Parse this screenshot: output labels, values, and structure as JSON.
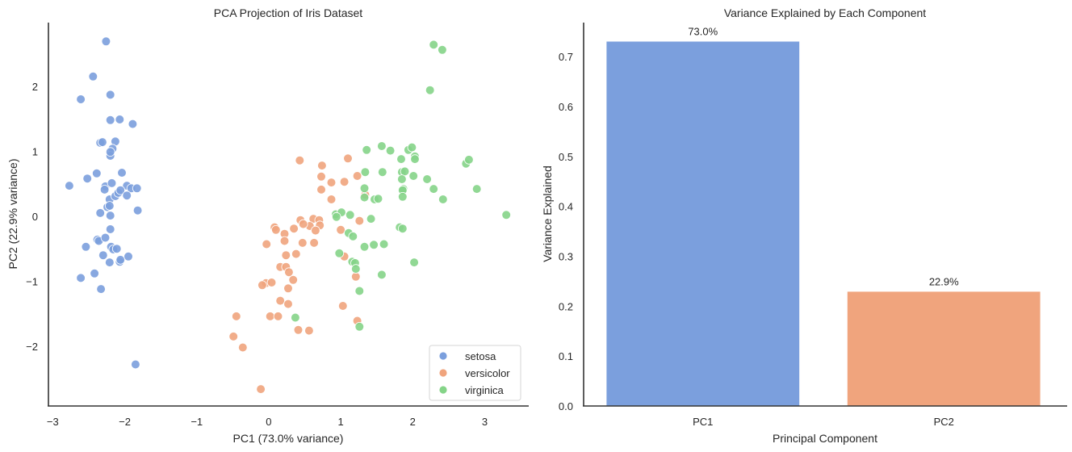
{
  "chart_data": [
    {
      "type": "scatter",
      "title": "PCA Projection of Iris Dataset",
      "xlabel": "PC1 (73.0% variance)",
      "ylabel": "PC2 (22.9% variance)",
      "xlim": [
        -3.06,
        3.6
      ],
      "ylim": [
        -2.92,
        2.98
      ],
      "xticks": [
        -3,
        -2,
        -1,
        0,
        1,
        2,
        3
      ],
      "xtick_labels": [
        "−3",
        "−2",
        "−1",
        "0",
        "1",
        "2",
        "3"
      ],
      "yticks": [
        -2,
        -1,
        0,
        1,
        2
      ],
      "ytick_labels": [
        "−2",
        "−1",
        "0",
        "1",
        "2"
      ],
      "grid": false,
      "legend": {
        "placement": "lower-right"
      },
      "series": [
        {
          "name": "setosa",
          "color": "#7b9fdd",
          "points": [
            [
              -2.26,
              2.69
            ],
            [
              -2.44,
              2.15
            ],
            [
              -2.61,
              1.8
            ],
            [
              -2.2,
              1.87
            ],
            [
              -2.2,
              1.48
            ],
            [
              -2.07,
              1.49
            ],
            [
              -1.89,
              1.42
            ],
            [
              -2.34,
              1.13
            ],
            [
              -2.31,
              1.14
            ],
            [
              -2.13,
              1.15
            ],
            [
              -2.17,
              1.04
            ],
            [
              -2.2,
              0.93
            ],
            [
              -2.2,
              0.99
            ],
            [
              -2.77,
              0.47
            ],
            [
              -2.52,
              0.58
            ],
            [
              -2.39,
              0.66
            ],
            [
              -2.04,
              0.67
            ],
            [
              -2.27,
              0.46
            ],
            [
              -2.28,
              0.41
            ],
            [
              -2.18,
              0.51
            ],
            [
              -1.97,
              0.47
            ],
            [
              -1.91,
              0.43
            ],
            [
              -1.83,
              0.43
            ],
            [
              -2.21,
              0.26
            ],
            [
              -2.13,
              0.31
            ],
            [
              -2.09,
              0.36
            ],
            [
              -2.06,
              0.4
            ],
            [
              -1.97,
              0.32
            ],
            [
              -2.34,
              0.05
            ],
            [
              -2.24,
              0.14
            ],
            [
              -2.21,
              0.16
            ],
            [
              -1.82,
              0.09
            ],
            [
              -2.2,
              0.01
            ],
            [
              -2.2,
              -0.2
            ],
            [
              -2.38,
              -0.36
            ],
            [
              -2.36,
              -0.38
            ],
            [
              -2.27,
              -0.33
            ],
            [
              -2.19,
              -0.47
            ],
            [
              -2.16,
              -0.51
            ],
            [
              -2.11,
              -0.5
            ],
            [
              -2.54,
              -0.47
            ],
            [
              -2.3,
              -0.6
            ],
            [
              -2.21,
              -0.71
            ],
            [
              -2.07,
              -0.7
            ],
            [
              -2.06,
              -0.67
            ],
            [
              -1.95,
              -0.62
            ],
            [
              -2.61,
              -0.95
            ],
            [
              -2.42,
              -0.88
            ],
            [
              -2.33,
              -1.12
            ],
            [
              -1.85,
              -2.28
            ]
          ]
        },
        {
          "name": "versicolor",
          "color": "#f0a47d",
          "points": [
            [
              0.43,
              0.86
            ],
            [
              0.74,
              0.78
            ],
            [
              1.1,
              0.89
            ],
            [
              0.73,
              0.61
            ],
            [
              0.87,
              0.52
            ],
            [
              1.05,
              0.53
            ],
            [
              1.23,
              0.62
            ],
            [
              0.73,
              0.41
            ],
            [
              0.87,
              0.26
            ],
            [
              1.34,
              0.33
            ],
            [
              0.62,
              -0.04
            ],
            [
              0.44,
              -0.06
            ],
            [
              0.7,
              -0.06
            ],
            [
              0.57,
              -0.15
            ],
            [
              0.71,
              -0.14
            ],
            [
              0.08,
              -0.17
            ],
            [
              0.1,
              -0.21
            ],
            [
              0.22,
              -0.27
            ],
            [
              0.35,
              -0.19
            ],
            [
              0.48,
              -0.12
            ],
            [
              0.65,
              -0.22
            ],
            [
              0.22,
              -0.38
            ],
            [
              -0.03,
              -0.43
            ],
            [
              0.47,
              -0.41
            ],
            [
              0.63,
              -0.41
            ],
            [
              1.0,
              -0.21
            ],
            [
              1.26,
              -0.07
            ],
            [
              0.24,
              -0.6
            ],
            [
              0.38,
              -0.58
            ],
            [
              0.16,
              -0.78
            ],
            [
              0.24,
              -0.78
            ],
            [
              0.28,
              -0.86
            ],
            [
              0.34,
              -0.98
            ],
            [
              1.05,
              -0.62
            ],
            [
              1.21,
              -0.93
            ],
            [
              -0.04,
              -1.03
            ],
            [
              -0.09,
              -1.06
            ],
            [
              0.04,
              -1.02
            ],
            [
              0.27,
              -1.11
            ],
            [
              0.16,
              -1.3
            ],
            [
              0.27,
              -1.35
            ],
            [
              1.03,
              -1.38
            ],
            [
              0.02,
              -1.54
            ],
            [
              0.13,
              -1.54
            ],
            [
              -0.45,
              -1.54
            ],
            [
              0.41,
              -1.75
            ],
            [
              0.56,
              -1.76
            ],
            [
              1.23,
              -1.61
            ],
            [
              -0.49,
              -1.85
            ],
            [
              -0.36,
              -2.02
            ],
            [
              -0.11,
              -2.66
            ]
          ]
        },
        {
          "name": "virginica",
          "color": "#85d488",
          "points": [
            [
              2.29,
              2.64
            ],
            [
              2.41,
              2.56
            ],
            [
              2.24,
              1.94
            ],
            [
              1.57,
              1.08
            ],
            [
              1.36,
              1.02
            ],
            [
              1.69,
              1.01
            ],
            [
              1.94,
              1.02
            ],
            [
              1.99,
              1.06
            ],
            [
              1.84,
              0.88
            ],
            [
              2.03,
              0.92
            ],
            [
              2.03,
              0.88
            ],
            [
              2.74,
              0.81
            ],
            [
              2.78,
              0.87
            ],
            [
              1.58,
              0.68
            ],
            [
              1.34,
              0.68
            ],
            [
              1.85,
              0.68
            ],
            [
              1.89,
              0.69
            ],
            [
              1.85,
              0.57
            ],
            [
              2.01,
              0.62
            ],
            [
              2.2,
              0.57
            ],
            [
              1.33,
              0.43
            ],
            [
              2.29,
              0.42
            ],
            [
              2.89,
              0.42
            ],
            [
              1.87,
              0.42
            ],
            [
              1.86,
              0.4
            ],
            [
              1.86,
              0.3
            ],
            [
              1.47,
              0.26
            ],
            [
              1.52,
              0.27
            ],
            [
              2.42,
              0.26
            ],
            [
              1.33,
              0.29
            ],
            [
              0.93,
              0.03
            ],
            [
              1.01,
              0.06
            ],
            [
              0.94,
              -0.01
            ],
            [
              1.13,
              0.02
            ],
            [
              1.42,
              -0.04
            ],
            [
              3.3,
              0.02
            ],
            [
              1.11,
              -0.26
            ],
            [
              1.17,
              -0.31
            ],
            [
              1.82,
              -0.17
            ],
            [
              1.86,
              -0.19
            ],
            [
              1.33,
              -0.47
            ],
            [
              1.46,
              -0.44
            ],
            [
              1.6,
              -0.43
            ],
            [
              0.98,
              -0.57
            ],
            [
              1.16,
              -0.7
            ],
            [
              1.2,
              -0.72
            ],
            [
              2.02,
              -0.71
            ],
            [
              1.21,
              -0.81
            ],
            [
              1.57,
              -0.9
            ],
            [
              1.26,
              -1.15
            ],
            [
              0.37,
              -1.56
            ],
            [
              1.26,
              -1.7
            ]
          ]
        }
      ]
    },
    {
      "type": "bar",
      "title": "Variance Explained by Each Component",
      "xlabel": "Principal Component",
      "ylabel": "Variance Explained",
      "categories": [
        "PC1",
        "PC2"
      ],
      "values": [
        0.73,
        0.229
      ],
      "bar_labels": [
        "73.0%",
        "22.9%"
      ],
      "colors": [
        "#7b9fdd",
        "#f0a47d"
      ],
      "ylim": [
        0,
        0.768
      ],
      "yticks": [
        0.0,
        0.1,
        0.2,
        0.3,
        0.4,
        0.5,
        0.6,
        0.7
      ],
      "ytick_labels": [
        "0.0",
        "0.1",
        "0.2",
        "0.3",
        "0.4",
        "0.5",
        "0.6",
        "0.7"
      ],
      "grid": false
    }
  ]
}
